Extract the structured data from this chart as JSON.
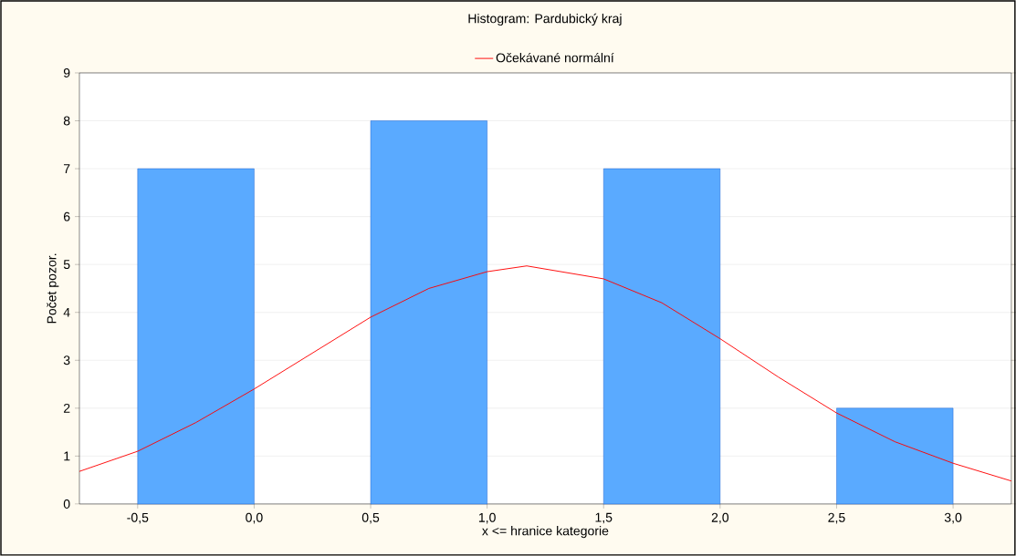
{
  "chart_data": {
    "type": "histogram",
    "title": "Histogram: Pardubický kraj",
    "xlabel": "x <= hranice kategorie",
    "ylabel": "Počet pozor.",
    "bins": [
      -0.5,
      0,
      0.5,
      1,
      1.5,
      2,
      2.5,
      3
    ],
    "values": [
      7,
      0,
      8,
      0,
      7,
      0,
      2
    ],
    "color": "#5aaaff",
    "series": [
      {
        "type": "line",
        "name": "Očekávané normální",
        "color": "#ff0000",
        "x": [
          -0.75,
          -0.5,
          -0.25,
          0,
          0.25,
          0.5,
          0.75,
          1.0,
          1.17,
          1.5,
          1.75,
          2.0,
          2.25,
          2.5,
          2.75,
          3.0,
          3.25
        ],
        "values": [
          0.68,
          1.1,
          1.7,
          2.4,
          3.15,
          3.9,
          4.5,
          4.85,
          4.97,
          4.7,
          4.2,
          3.45,
          2.65,
          1.9,
          1.3,
          0.85,
          0.48
        ]
      }
    ],
    "xlim": [
      -0.75,
      3.25
    ],
    "ylim": [
      0,
      9
    ],
    "xticks": [
      {
        "value": -0.5,
        "label": "-0,5"
      },
      {
        "value": 0,
        "label": "0,0"
      },
      {
        "value": 0.5,
        "label": "0,5"
      },
      {
        "value": 1,
        "label": "1,0"
      },
      {
        "value": 1.5,
        "label": "1,5"
      },
      {
        "value": 2,
        "label": "2,0"
      },
      {
        "value": 2.5,
        "label": "2,5"
      },
      {
        "value": 3,
        "label": "3,0"
      }
    ],
    "yticks": [
      0,
      1,
      2,
      3,
      4,
      5,
      6,
      7,
      8,
      9
    ],
    "grid": "y",
    "legend": "top"
  }
}
